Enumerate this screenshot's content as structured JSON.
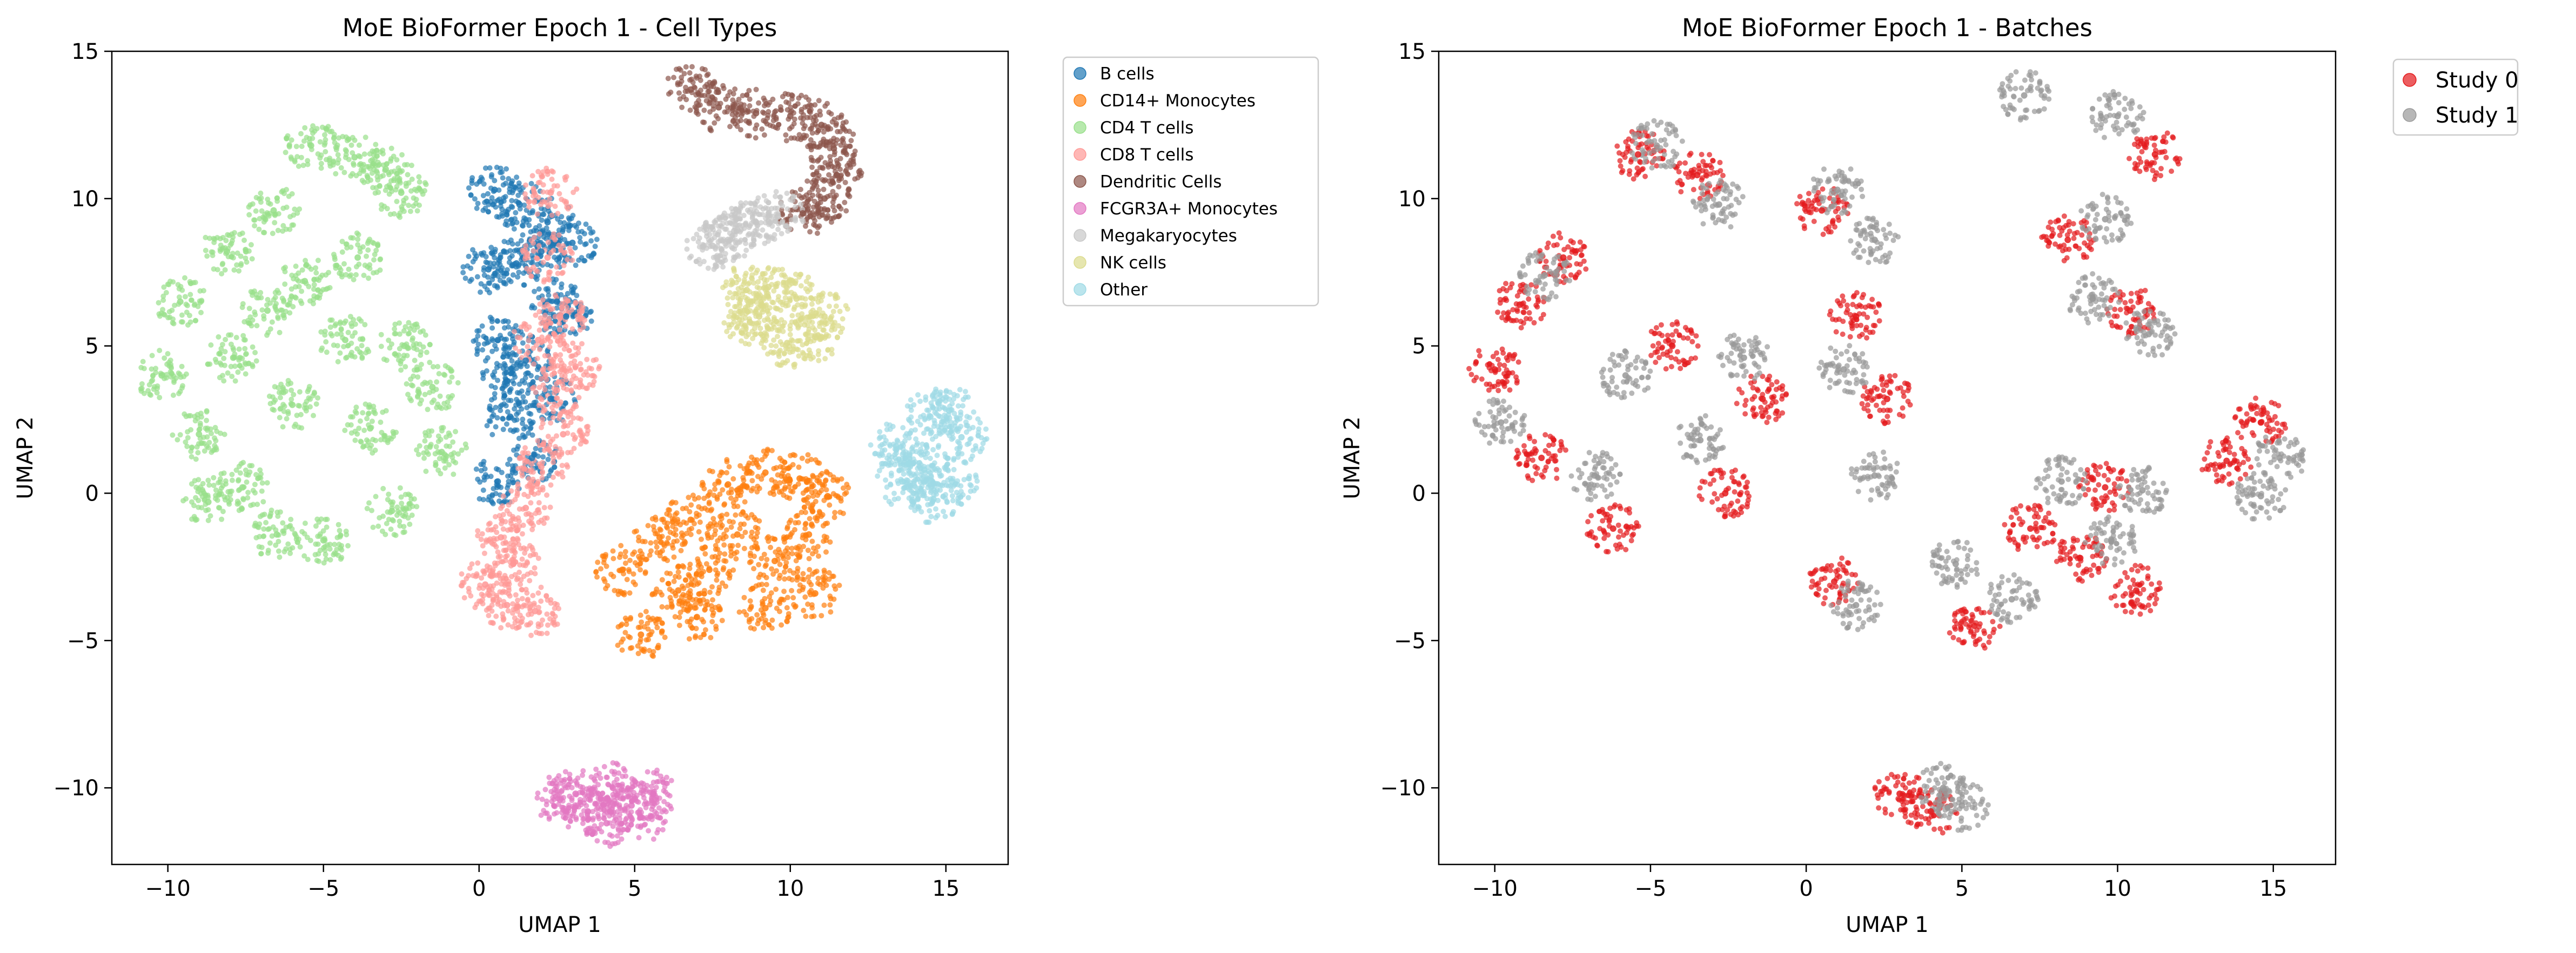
{
  "chart_data": [
    {
      "type": "scatter",
      "title": "MoE BioFormer Epoch 1 - Cell Types",
      "xlabel": "UMAP 1",
      "ylabel": "UMAP 2",
      "xlim": [
        -11.8,
        17.0
      ],
      "ylim": [
        -12.6,
        15.0
      ],
      "xticks": [
        -10,
        -5,
        0,
        5,
        10,
        15
      ],
      "yticks": [
        -10,
        -5,
        0,
        5,
        10,
        15
      ],
      "xtick_labels": [
        "−10",
        "−5",
        "0",
        "5",
        "10",
        "15"
      ],
      "ytick_labels": [
        "−10",
        "−5",
        "0",
        "5",
        "10",
        "15"
      ],
      "grid": false,
      "legend_placement": "outside upper right",
      "series": [
        {
          "name": "B cells",
          "color": "#1f77b4",
          "points": [
            [
              0.5,
              10.3
            ],
            [
              1.3,
              9.8
            ],
            [
              2.2,
              9.2
            ],
            [
              0.3,
              7.6
            ],
            [
              1.2,
              7.8
            ],
            [
              2.5,
              6.5
            ],
            [
              0.6,
              5.2
            ],
            [
              1.5,
              4.5
            ],
            [
              2.8,
              6.0
            ],
            [
              1.0,
              2.6
            ],
            [
              1.7,
              1.2
            ],
            [
              0.6,
              0.4
            ],
            [
              2.3,
              3.2
            ],
            [
              0.9,
              3.8
            ],
            [
              2.0,
              8.2
            ],
            [
              3.0,
              8.5
            ]
          ]
        },
        {
          "name": "CD14+ Monocytes",
          "color": "#ff7f0e",
          "points": [
            [
              5.2,
              -4.8
            ],
            [
              4.6,
              -2.6
            ],
            [
              5.8,
              -1.5
            ],
            [
              6.8,
              -0.9
            ],
            [
              8.0,
              0.3
            ],
            [
              9.2,
              0.7
            ],
            [
              10.3,
              0.5
            ],
            [
              11.2,
              -0.1
            ],
            [
              10.6,
              -1.4
            ],
            [
              9.5,
              -2.3
            ],
            [
              10.8,
              -3.4
            ],
            [
              9.2,
              -3.9
            ],
            [
              7.4,
              -2.6
            ],
            [
              6.4,
              -3.3
            ],
            [
              8.3,
              -1.4
            ],
            [
              7.0,
              -4.2
            ]
          ]
        },
        {
          "name": "CD4 T cells",
          "color": "#98df8a",
          "points": [
            [
              -10.2,
              4.0
            ],
            [
              -9.6,
              6.5
            ],
            [
              -9.0,
              2.0
            ],
            [
              -8.1,
              8.2
            ],
            [
              -7.6,
              0.2
            ],
            [
              -6.5,
              -1.4
            ],
            [
              -5.0,
              -1.6
            ],
            [
              -5.4,
              11.8
            ],
            [
              -4.0,
              11.4
            ],
            [
              -3.0,
              11.0
            ],
            [
              -2.5,
              10.2
            ],
            [
              -6.6,
              9.6
            ],
            [
              -7.9,
              4.6
            ],
            [
              -6.0,
              3.0
            ],
            [
              -6.8,
              6.2
            ],
            [
              -4.3,
              5.2
            ],
            [
              -3.5,
              2.2
            ],
            [
              -2.8,
              -0.6
            ],
            [
              -2.4,
              5.0
            ],
            [
              -1.5,
              3.6
            ],
            [
              -1.2,
              1.4
            ],
            [
              -3.9,
              8.0
            ],
            [
              -8.7,
              -0.3
            ],
            [
              -5.6,
              7.2
            ]
          ]
        },
        {
          "name": "CD8 T cells",
          "color": "#ff9896",
          "points": [
            [
              0.2,
              -3.1
            ],
            [
              0.9,
              -3.8
            ],
            [
              1.8,
              -4.0
            ],
            [
              0.7,
              -1.5
            ],
            [
              1.5,
              -0.5
            ],
            [
              2.0,
              0.9
            ],
            [
              2.7,
              2.0
            ],
            [
              2.5,
              3.5
            ],
            [
              3.1,
              4.3
            ],
            [
              2.6,
              6.0
            ],
            [
              2.2,
              8.0
            ],
            [
              2.3,
              10.2
            ],
            [
              1.9,
              5.2
            ],
            [
              1.1,
              -2.4
            ]
          ]
        },
        {
          "name": "Dendritic Cells",
          "color": "#8c564b",
          "points": [
            [
              6.8,
              13.7
            ],
            [
              7.7,
              13.1
            ],
            [
              8.9,
              12.9
            ],
            [
              10.0,
              12.8
            ],
            [
              11.0,
              12.5
            ],
            [
              11.4,
              11.7
            ],
            [
              11.5,
              10.8
            ],
            [
              11.1,
              10.0
            ],
            [
              10.4,
              9.5
            ]
          ]
        },
        {
          "name": "FCGR3A+ Monocytes",
          "color": "#e377c2",
          "points": [
            [
              2.6,
              -10.4
            ],
            [
              3.5,
              -10.8
            ],
            [
              4.1,
              -11.2
            ],
            [
              4.9,
              -10.6
            ],
            [
              5.6,
              -10.2
            ],
            [
              4.3,
              -10.0
            ],
            [
              3.1,
              -10.2
            ],
            [
              5.2,
              -11.0
            ]
          ]
        },
        {
          "name": "Megakaryocytes",
          "color": "#c7c7c7",
          "points": [
            [
              7.5,
              8.4
            ],
            [
              8.2,
              8.9
            ],
            [
              8.9,
              9.2
            ],
            [
              9.6,
              9.4
            ],
            [
              8.0,
              8.6
            ]
          ]
        },
        {
          "name": "NK cells",
          "color": "#dbdb8d",
          "points": [
            [
              8.6,
              6.9
            ],
            [
              9.3,
              7.0
            ],
            [
              10.2,
              6.6
            ],
            [
              11.1,
              6.0
            ],
            [
              10.8,
              5.3
            ],
            [
              9.9,
              5.1
            ],
            [
              9.0,
              6.0
            ],
            [
              8.7,
              5.8
            ]
          ]
        },
        {
          "name": "Other",
          "color": "#9edae5",
          "points": [
            [
              13.4,
              1.6
            ],
            [
              13.8,
              1.0
            ],
            [
              14.5,
              2.6
            ],
            [
              15.1,
              2.8
            ],
            [
              15.5,
              1.9
            ],
            [
              15.2,
              0.4
            ],
            [
              14.6,
              -0.2
            ],
            [
              14.3,
              0.8
            ],
            [
              13.6,
              0.4
            ]
          ]
        }
      ]
    },
    {
      "type": "scatter",
      "title": "MoE BioFormer Epoch 1 - Batches",
      "xlabel": "UMAP 1",
      "ylabel": "UMAP 2",
      "xlim": [
        -11.8,
        17.0
      ],
      "ylim": [
        -12.6,
        15.0
      ],
      "xticks": [
        -10,
        -5,
        0,
        5,
        10,
        15
      ],
      "yticks": [
        -10,
        -5,
        0,
        5,
        10,
        15
      ],
      "xtick_labels": [
        "−10",
        "−5",
        "0",
        "5",
        "10",
        "15"
      ],
      "ytick_labels": [
        "−10",
        "−5",
        "0",
        "5",
        "10",
        "15"
      ],
      "grid": false,
      "legend_placement": "outside upper right",
      "series": [
        {
          "name": "Study 0",
          "color": "#e41a1c",
          "points": [
            [
              -10.0,
              4.2
            ],
            [
              -9.2,
              6.4
            ],
            [
              -7.8,
              8.0
            ],
            [
              -6.2,
              -1.2
            ],
            [
              -5.4,
              11.5
            ],
            [
              -3.5,
              10.8
            ],
            [
              -4.3,
              5.0
            ],
            [
              -2.6,
              0.0
            ],
            [
              -1.4,
              3.2
            ],
            [
              0.5,
              9.6
            ],
            [
              1.6,
              6.0
            ],
            [
              2.6,
              3.2
            ],
            [
              0.9,
              -3.0
            ],
            [
              5.4,
              -4.5
            ],
            [
              7.2,
              -1.2
            ],
            [
              9.6,
              0.2
            ],
            [
              10.6,
              -3.3
            ],
            [
              8.8,
              -2.2
            ],
            [
              11.2,
              11.5
            ],
            [
              8.4,
              8.6
            ],
            [
              10.4,
              6.2
            ],
            [
              14.6,
              2.4
            ],
            [
              13.5,
              1.1
            ],
            [
              4.0,
              -10.8
            ],
            [
              3.0,
              -10.2
            ],
            [
              -8.5,
              1.2
            ]
          ]
        },
        {
          "name": "Study 1",
          "color": "#999999",
          "points": [
            [
              -9.8,
              2.4
            ],
            [
              -8.4,
              7.4
            ],
            [
              -6.8,
              0.6
            ],
            [
              -4.8,
              11.8
            ],
            [
              -2.8,
              9.8
            ],
            [
              -5.8,
              4.0
            ],
            [
              -2.0,
              4.6
            ],
            [
              -3.4,
              1.8
            ],
            [
              1.0,
              10.3
            ],
            [
              2.2,
              8.6
            ],
            [
              1.2,
              4.2
            ],
            [
              2.2,
              0.6
            ],
            [
              1.6,
              -3.8
            ],
            [
              4.8,
              -2.4
            ],
            [
              6.6,
              -3.6
            ],
            [
              8.2,
              0.4
            ],
            [
              10.8,
              0.1
            ],
            [
              9.8,
              -1.6
            ],
            [
              7.0,
              13.5
            ],
            [
              10.0,
              12.8
            ],
            [
              9.6,
              9.3
            ],
            [
              9.2,
              6.6
            ],
            [
              11.0,
              5.4
            ],
            [
              15.2,
              1.2
            ],
            [
              14.6,
              -0.1
            ],
            [
              5.0,
              -10.6
            ],
            [
              4.4,
              -10.0
            ]
          ]
        }
      ]
    }
  ]
}
